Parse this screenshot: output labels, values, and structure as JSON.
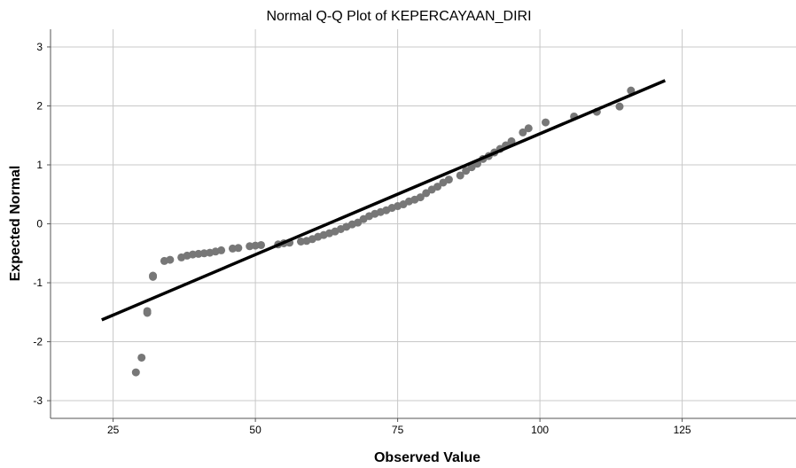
{
  "chart_data": {
    "type": "scatter",
    "title": "Normal Q-Q Plot of KEPERCAYAAN_DIRI",
    "xlabel": "Observed Value",
    "ylabel": "Expected Normal",
    "xlim": [
      14,
      145
    ],
    "ylim": [
      -3.3,
      3.3
    ],
    "xticks": [
      25,
      50,
      75,
      100,
      125
    ],
    "yticks": [
      3,
      2,
      1,
      0,
      -1,
      -2,
      -3
    ],
    "grid": true,
    "colors": {
      "points": "#777777",
      "line": "#000000",
      "grid": "#c8c8c8",
      "axis": "#555555"
    },
    "reference_line": {
      "x": [
        23,
        122
      ],
      "y": [
        -1.63,
        2.43
      ]
    },
    "points": {
      "x": [
        29,
        30,
        31,
        31,
        32,
        32,
        34,
        35,
        37,
        38,
        39,
        40,
        41,
        42,
        43,
        44,
        46,
        47,
        49,
        50,
        51,
        54,
        55,
        56,
        58,
        59,
        60,
        61,
        62,
        63,
        64,
        65,
        66,
        67,
        68,
        69,
        70,
        71,
        72,
        73,
        74,
        75,
        76,
        77,
        78,
        79,
        80,
        81,
        82,
        83,
        84,
        86,
        87,
        88,
        89,
        90,
        91,
        92,
        93,
        94,
        95,
        97,
        98,
        101,
        106,
        110,
        114,
        116
      ],
      "y": [
        -2.52,
        -2.27,
        -1.48,
        -1.51,
        -0.88,
        -0.9,
        -0.63,
        -0.61,
        -0.57,
        -0.54,
        -0.52,
        -0.51,
        -0.5,
        -0.49,
        -0.47,
        -0.45,
        -0.42,
        -0.41,
        -0.38,
        -0.37,
        -0.36,
        -0.35,
        -0.33,
        -0.32,
        -0.3,
        -0.29,
        -0.26,
        -0.22,
        -0.19,
        -0.16,
        -0.13,
        -0.09,
        -0.05,
        -0.01,
        0.02,
        0.08,
        0.13,
        0.17,
        0.2,
        0.23,
        0.27,
        0.3,
        0.33,
        0.38,
        0.41,
        0.45,
        0.52,
        0.58,
        0.63,
        0.7,
        0.75,
        0.82,
        0.9,
        0.96,
        1.02,
        1.1,
        1.15,
        1.21,
        1.27,
        1.33,
        1.4,
        1.55,
        1.62,
        1.72,
        1.82,
        1.9,
        1.99,
        2.26
      ]
    }
  }
}
